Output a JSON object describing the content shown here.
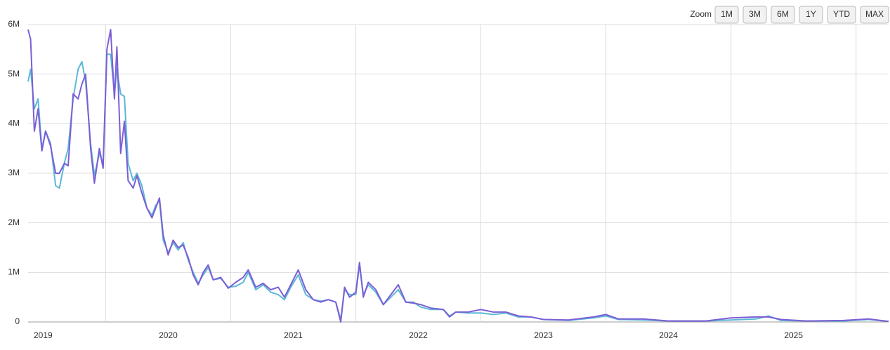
{
  "chart_data": {
    "type": "line",
    "zoom_label": "Zoom",
    "zoom_buttons": [
      "1M",
      "3M",
      "6M",
      "1Y",
      "YTD",
      "MAX"
    ],
    "x": [
      2018.88,
      2018.9,
      2018.93,
      2018.96,
      2018.99,
      2019.02,
      2019.06,
      2019.1,
      2019.13,
      2019.17,
      2019.2,
      2019.24,
      2019.28,
      2019.31,
      2019.34,
      2019.38,
      2019.41,
      2019.45,
      2019.48,
      2019.51,
      2019.54,
      2019.57,
      2019.59,
      2019.62,
      2019.65,
      2019.68,
      2019.72,
      2019.75,
      2019.79,
      2019.83,
      2019.87,
      2019.9,
      2019.93,
      2019.96,
      2020.0,
      2020.04,
      2020.08,
      2020.12,
      2020.16,
      2020.2,
      2020.24,
      2020.28,
      2020.32,
      2020.36,
      2020.42,
      2020.48,
      2020.54,
      2020.6,
      2020.64,
      2020.7,
      2020.76,
      2020.82,
      2020.88,
      2020.93,
      2020.98,
      2021.04,
      2021.1,
      2021.16,
      2021.22,
      2021.28,
      2021.34,
      2021.38,
      2021.41,
      2021.45,
      2021.5,
      2021.53,
      2021.56,
      2021.6,
      2021.66,
      2021.72,
      2021.78,
      2021.84,
      2021.9,
      2021.96,
      2022.02,
      2022.1,
      2022.2,
      2022.25,
      2022.3,
      2022.4,
      2022.5,
      2022.6,
      2022.7,
      2022.8,
      2022.9,
      2023.0,
      2023.2,
      2023.4,
      2023.5,
      2023.6,
      2023.8,
      2024.0,
      2024.3,
      2024.5,
      2024.7,
      2024.8,
      2024.9,
      2025.1,
      2025.4,
      2025.6,
      2025.76
    ],
    "series": [
      {
        "color": "#5cb8d6",
        "values": [
          4850000,
          5100000,
          4300000,
          4500000,
          3500000,
          3850000,
          3600000,
          2750000,
          2700000,
          3200000,
          3500000,
          4500000,
          5100000,
          5250000,
          4850000,
          3600000,
          2950000,
          3400000,
          3200000,
          5400000,
          5400000,
          4600000,
          5100000,
          4600000,
          4550000,
          3200000,
          2850000,
          3000000,
          2750000,
          2300000,
          2150000,
          2350000,
          2450000,
          1650000,
          1400000,
          1600000,
          1450000,
          1600000,
          1250000,
          1000000,
          780000,
          950000,
          1100000,
          850000,
          880000,
          700000,
          720000,
          800000,
          1000000,
          650000,
          750000,
          600000,
          550000,
          450000,
          700000,
          950000,
          550000,
          450000,
          420000,
          450000,
          400000,
          50000,
          650000,
          550000,
          550000,
          1150000,
          550000,
          750000,
          600000,
          350000,
          500000,
          650000,
          400000,
          400000,
          300000,
          250000,
          250000,
          120000,
          200000,
          180000,
          180000,
          150000,
          180000,
          100000,
          100000,
          50000,
          30000,
          80000,
          120000,
          50000,
          40000,
          20000,
          20000,
          40000,
          60000,
          120000,
          30000,
          20000,
          20000,
          50000,
          10000
        ]
      },
      {
        "color": "#7b5fd6",
        "values": [
          5900000,
          5700000,
          3850000,
          4300000,
          3450000,
          3850000,
          3550000,
          3000000,
          3000000,
          3200000,
          3150000,
          4600000,
          4500000,
          4800000,
          5000000,
          3500000,
          2800000,
          3500000,
          3100000,
          5500000,
          5900000,
          4500000,
          5550000,
          3400000,
          4050000,
          2850000,
          2700000,
          2950000,
          2600000,
          2300000,
          2100000,
          2300000,
          2500000,
          1750000,
          1350000,
          1650000,
          1500000,
          1550000,
          1300000,
          950000,
          750000,
          1000000,
          1150000,
          850000,
          900000,
          680000,
          800000,
          900000,
          1050000,
          700000,
          780000,
          650000,
          700000,
          500000,
          750000,
          1050000,
          650000,
          450000,
          400000,
          450000,
          400000,
          0,
          700000,
          500000,
          600000,
          1200000,
          500000,
          800000,
          650000,
          350000,
          550000,
          750000,
          400000,
          380000,
          350000,
          280000,
          250000,
          100000,
          200000,
          200000,
          250000,
          200000,
          200000,
          120000,
          100000,
          50000,
          40000,
          100000,
          150000,
          60000,
          60000,
          20000,
          20000,
          80000,
          100000,
          100000,
          50000,
          20000,
          30000,
          60000,
          10000
        ]
      }
    ],
    "xlim": [
      2018.88,
      2025.76
    ],
    "xticks": [
      2019,
      2020,
      2021,
      2022,
      2023,
      2024,
      2025
    ],
    "xgrid": [
      2019.5,
      2020.5,
      2021.5,
      2022.5,
      2023.5,
      2024.5,
      2025.5
    ],
    "ylim": [
      0,
      6000000
    ],
    "yticks": [
      0,
      {
        "value": 1000000,
        "label": "1M"
      },
      {
        "value": 2000000,
        "label": "2M"
      },
      {
        "value": 3000000,
        "label": "3M"
      },
      {
        "value": 4000000,
        "label": "4M"
      },
      {
        "value": 5000000,
        "label": "5M"
      },
      {
        "value": 6000000,
        "label": "6M"
      }
    ],
    "grid": true
  }
}
